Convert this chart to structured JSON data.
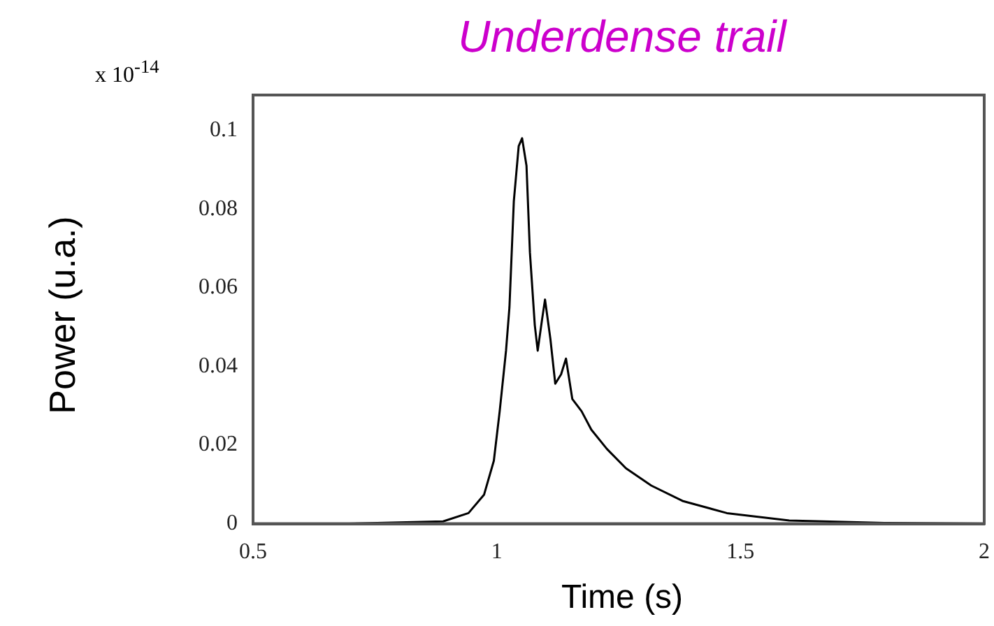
{
  "chart_data": {
    "type": "line",
    "title": "Underdense trail",
    "xlabel": "Time  (s)",
    "ylabel": "Power   (u.a.)",
    "annotations": [
      "x 10$^{-14}$"
    ],
    "x": [
      0.5,
      0.696,
      0.89,
      0.942,
      0.974,
      0.994,
      1.006,
      1.019,
      1.026,
      1.035,
      1.045,
      1.052,
      1.061,
      1.068,
      1.078,
      1.084,
      1.093,
      1.099,
      1.11,
      1.12,
      1.132,
      1.142,
      1.155,
      1.174,
      1.194,
      1.226,
      1.265,
      1.317,
      1.381,
      1.472,
      1.6,
      1.795,
      2.0
    ],
    "series": [
      {
        "color": "#000000",
        "values": [
          0,
          0,
          0.0006,
          0.0027,
          0.0074,
          0.016,
          0.0286,
          0.044,
          0.055,
          0.082,
          0.096,
          0.098,
          0.091,
          0.069,
          0.0505,
          0.044,
          0.052,
          0.057,
          0.047,
          0.0356,
          0.038,
          0.042,
          0.0317,
          0.0286,
          0.0239,
          0.019,
          0.0141,
          0.0097,
          0.0058,
          0.0027,
          0.0008,
          0.0002,
          0
        ]
      }
    ],
    "xlim": [
      0.5,
      2
    ],
    "xticks": [
      0.5,
      1,
      1.5,
      2
    ],
    "ylim": [
      0,
      0.109
    ],
    "yticks": [
      0,
      0.02,
      0.04,
      0.06,
      0.08,
      0.1
    ],
    "grid": false,
    "legend": false,
    "marker": "none",
    "line_style": "solid"
  }
}
